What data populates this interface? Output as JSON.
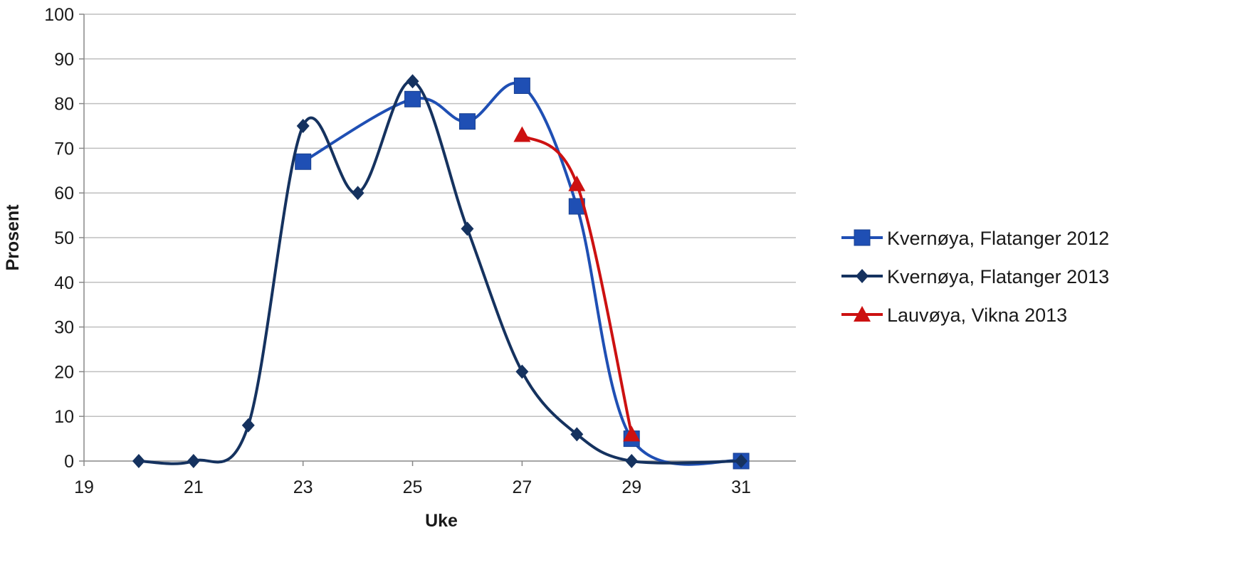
{
  "chart_data": {
    "type": "line",
    "title": "",
    "xlabel": "Uke",
    "ylabel": "Prosent",
    "xlim": [
      19,
      32
    ],
    "ylim": [
      0,
      100
    ],
    "xticks": [
      19,
      21,
      23,
      25,
      27,
      29,
      31
    ],
    "yticks": [
      0,
      10,
      20,
      30,
      40,
      50,
      60,
      70,
      80,
      90,
      100
    ],
    "grid": "horizontal",
    "legend_position": "right",
    "smooth": true,
    "series": [
      {
        "name": "Kvernøya, Flatanger 2012",
        "color": "#1f4fb4",
        "marker": "square",
        "x": [
          23,
          25,
          26,
          27,
          28,
          29,
          31
        ],
        "y": [
          67,
          81,
          76,
          84,
          57,
          5,
          0
        ]
      },
      {
        "name": "Kvernøya, Flatanger 2013",
        "color": "#15325f",
        "marker": "diamond",
        "x": [
          20,
          21,
          22,
          23,
          24,
          25,
          26,
          27,
          28,
          29,
          31
        ],
        "y": [
          0,
          0,
          8,
          75,
          60,
          85,
          52,
          20,
          6,
          0,
          0
        ]
      },
      {
        "name": "Lauvøya, Vikna 2013",
        "color": "#cc1111",
        "marker": "triangle",
        "x": [
          27,
          28,
          29
        ],
        "y": [
          73,
          62,
          6
        ]
      }
    ]
  }
}
